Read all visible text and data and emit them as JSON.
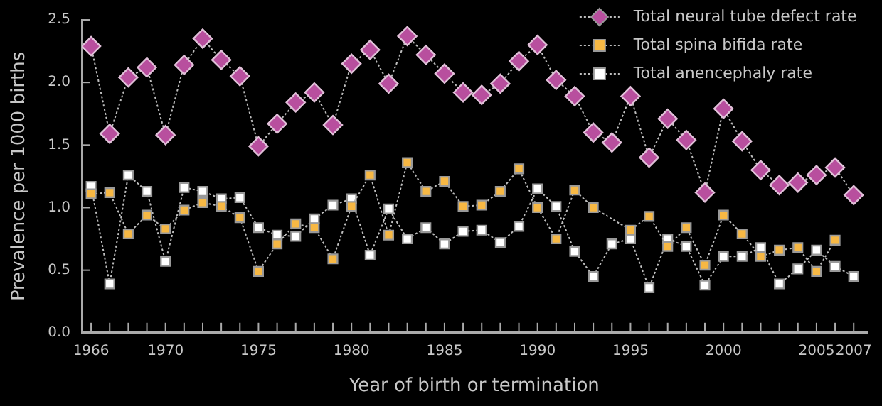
{
  "chart_data": {
    "type": "line",
    "xlabel": "Year of birth or termination",
    "ylabel": "Prevalence per 1000 births",
    "x": [
      1966,
      1967,
      1968,
      1969,
      1970,
      1971,
      1972,
      1973,
      1974,
      1975,
      1976,
      1977,
      1978,
      1979,
      1980,
      1981,
      1982,
      1983,
      1984,
      1985,
      1986,
      1987,
      1988,
      1989,
      1990,
      1991,
      1992,
      1993,
      1994,
      1995,
      1996,
      1997,
      1998,
      1999,
      2000,
      2001,
      2002,
      2003,
      2004,
      2005,
      2006,
      2007
    ],
    "series": [
      {
        "name": "Total neural tube defect rate",
        "color": "#b84f9e",
        "marker": "diamond",
        "values": [
          2.29,
          1.59,
          2.04,
          2.12,
          1.58,
          2.14,
          2.35,
          2.18,
          2.05,
          1.49,
          1.67,
          1.84,
          1.92,
          1.66,
          2.15,
          2.26,
          1.99,
          2.37,
          2.22,
          2.07,
          1.92,
          1.9,
          1.99,
          2.17,
          2.3,
          2.02,
          1.89,
          1.6,
          1.52,
          1.89,
          1.4,
          1.71,
          1.54,
          1.12,
          1.79,
          1.53,
          1.3,
          1.18,
          1.2,
          1.26,
          1.32,
          1.1
        ]
      },
      {
        "name": "Total spina bifida rate",
        "color": "#f7b844",
        "marker": "square",
        "values": [
          1.11,
          1.12,
          0.79,
          0.94,
          0.83,
          0.98,
          1.04,
          1.01,
          0.92,
          0.49,
          0.71,
          0.87,
          0.84,
          0.59,
          1.01,
          1.26,
          0.78,
          1.36,
          1.13,
          1.21,
          1.01,
          1.02,
          1.13,
          1.31,
          1.0,
          0.75,
          1.14,
          1.0,
          null,
          0.82,
          0.93,
          0.69,
          0.84,
          0.54,
          0.94,
          0.79,
          0.61,
          0.66,
          0.68,
          0.49,
          0.74,
          null
        ]
      },
      {
        "name": "Total anencephaly rate",
        "color": "#ffffff",
        "marker": "square",
        "values": [
          1.17,
          0.39,
          1.26,
          1.13,
          0.57,
          1.16,
          1.13,
          1.07,
          1.08,
          0.84,
          0.78,
          0.77,
          0.91,
          1.02,
          1.07,
          0.62,
          0.99,
          0.75,
          0.84,
          0.71,
          0.81,
          0.82,
          0.72,
          0.85,
          1.15,
          1.01,
          0.65,
          0.45,
          0.71,
          0.75,
          0.36,
          0.75,
          0.69,
          0.38,
          0.61,
          0.61,
          0.68,
          0.39,
          0.51,
          0.66,
          0.53,
          0.45
        ]
      }
    ],
    "xlim": [
      1965.5,
      2007.7
    ],
    "xticks": [
      {
        "value": 1966,
        "label": "1966"
      },
      {
        "value": 1967,
        "label": null
      },
      {
        "value": 1968,
        "label": null
      },
      {
        "value": 1969,
        "label": null
      },
      {
        "value": 1970,
        "label": "1970"
      },
      {
        "value": 1971,
        "label": null
      },
      {
        "value": 1972,
        "label": null
      },
      {
        "value": 1973,
        "label": null
      },
      {
        "value": 1974,
        "label": null
      },
      {
        "value": 1975,
        "label": "1975"
      },
      {
        "value": 1976,
        "label": null
      },
      {
        "value": 1977,
        "label": null
      },
      {
        "value": 1978,
        "label": null
      },
      {
        "value": 1979,
        "label": null
      },
      {
        "value": 1980,
        "label": "1980"
      },
      {
        "value": 1981,
        "label": null
      },
      {
        "value": 1982,
        "label": null
      },
      {
        "value": 1983,
        "label": null
      },
      {
        "value": 1984,
        "label": null
      },
      {
        "value": 1985,
        "label": "1985"
      },
      {
        "value": 1986,
        "label": null
      },
      {
        "value": 1987,
        "label": null
      },
      {
        "value": 1988,
        "label": null
      },
      {
        "value": 1989,
        "label": null
      },
      {
        "value": 1990,
        "label": "1990"
      },
      {
        "value": 1991,
        "label": null
      },
      {
        "value": 1992,
        "label": null
      },
      {
        "value": 1993,
        "label": null
      },
      {
        "value": 1994,
        "label": null
      },
      {
        "value": 1995,
        "label": "1995"
      },
      {
        "value": 1996,
        "label": null
      },
      {
        "value": 1997,
        "label": null
      },
      {
        "value": 1998,
        "label": null
      },
      {
        "value": 1999,
        "label": null
      },
      {
        "value": 2000,
        "label": "2000"
      },
      {
        "value": 2001,
        "label": null
      },
      {
        "value": 2002,
        "label": null
      },
      {
        "value": 2003,
        "label": null
      },
      {
        "value": 2004,
        "label": null
      },
      {
        "value": 2005,
        "label": "2005"
      },
      {
        "value": 2006,
        "label": null
      },
      {
        "value": 2007,
        "label": "2007"
      }
    ],
    "ylim": [
      0,
      2.5
    ],
    "yticks": [
      {
        "value": 0,
        "label": "0.0"
      },
      {
        "value": 0.5,
        "label": "0.5"
      },
      {
        "value": 1,
        "label": "1.0"
      },
      {
        "value": 1.5,
        "label": "1.5"
      },
      {
        "value": 2,
        "label": "2.0"
      },
      {
        "value": 2.5,
        "label": "2.5"
      }
    ],
    "grid": false,
    "legend": "top right",
    "line_style": "dotted"
  }
}
